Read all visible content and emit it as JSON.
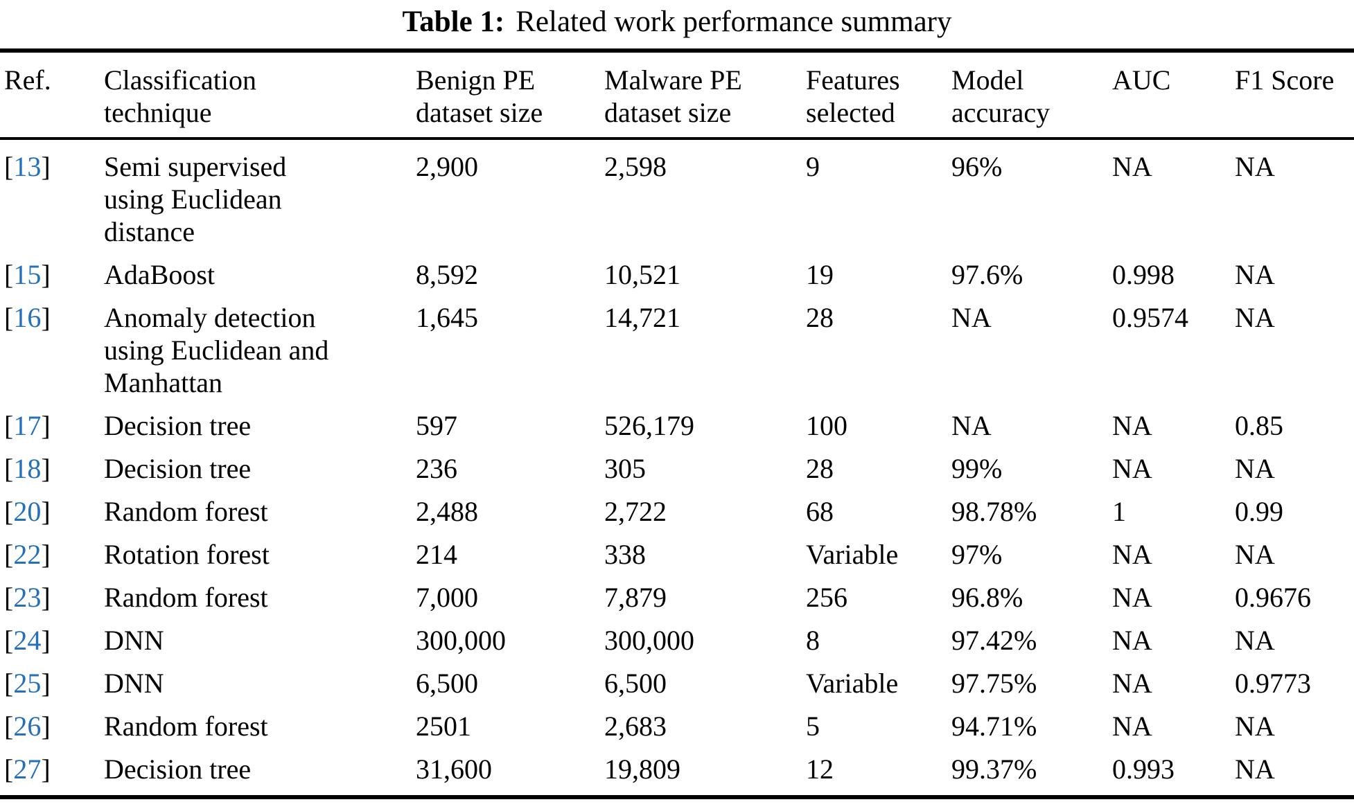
{
  "caption": {
    "label": "Table 1:",
    "text": "Related work performance summary"
  },
  "colors": {
    "citation_blue": "#2470bd",
    "text": "#000000",
    "background": "#ffffff"
  },
  "columns": [
    "Ref.",
    "Classification\ntechnique",
    "Benign PE\ndataset size",
    "Malware PE\ndataset size",
    "Features\nselected",
    "Model\naccuracy",
    "AUC",
    "F1 Score"
  ],
  "rows": [
    {
      "ref": "13",
      "technique": "Semi supervised\nusing Euclidean\ndistance",
      "benign": "2,900",
      "malware": "2,598",
      "features": "9",
      "accuracy": "96%",
      "auc": "NA",
      "f1": "NA"
    },
    {
      "ref": "15",
      "technique": "AdaBoost",
      "benign": "8,592",
      "malware": "10,521",
      "features": "19",
      "accuracy": "97.6%",
      "auc": "0.998",
      "f1": "NA"
    },
    {
      "ref": "16",
      "technique": "Anomaly detection\nusing Euclidean and\nManhattan",
      "benign": "1,645",
      "malware": "14,721",
      "features": "28",
      "accuracy": "NA",
      "auc": "0.9574",
      "f1": "NA"
    },
    {
      "ref": "17",
      "technique": "Decision tree",
      "benign": "597",
      "malware": "526,179",
      "features": "100",
      "accuracy": "NA",
      "auc": "NA",
      "f1": "0.85"
    },
    {
      "ref": "18",
      "technique": "Decision tree",
      "benign": "236",
      "malware": "305",
      "features": "28",
      "accuracy": "99%",
      "auc": "NA",
      "f1": "NA"
    },
    {
      "ref": "20",
      "technique": "Random forest",
      "benign": "2,488",
      "malware": "2,722",
      "features": "68",
      "accuracy": "98.78%",
      "auc": "1",
      "f1": "0.99"
    },
    {
      "ref": "22",
      "technique": "Rotation forest",
      "benign": "214",
      "malware": "338",
      "features": "Variable",
      "accuracy": "97%",
      "auc": "NA",
      "f1": "NA"
    },
    {
      "ref": "23",
      "technique": "Random forest",
      "benign": "7,000",
      "malware": "7,879",
      "features": "256",
      "accuracy": "96.8%",
      "auc": "NA",
      "f1": "0.9676"
    },
    {
      "ref": "24",
      "technique": "DNN",
      "benign": "300,000",
      "malware": "300,000",
      "features": "8",
      "accuracy": "97.42%",
      "auc": "NA",
      "f1": "NA"
    },
    {
      "ref": "25",
      "technique": "DNN",
      "benign": "6,500",
      "malware": "6,500",
      "features": "Variable",
      "accuracy": "97.75%",
      "auc": "NA",
      "f1": "0.9773"
    },
    {
      "ref": "26",
      "technique": "Random forest",
      "benign": "2501",
      "malware": "2,683",
      "features": "5",
      "accuracy": "94.71%",
      "auc": "NA",
      "f1": "NA"
    },
    {
      "ref": "27",
      "technique": "Decision tree",
      "benign": "31,600",
      "malware": "19,809",
      "features": "12",
      "accuracy": "99.37%",
      "auc": "0.993",
      "f1": "NA"
    }
  ]
}
